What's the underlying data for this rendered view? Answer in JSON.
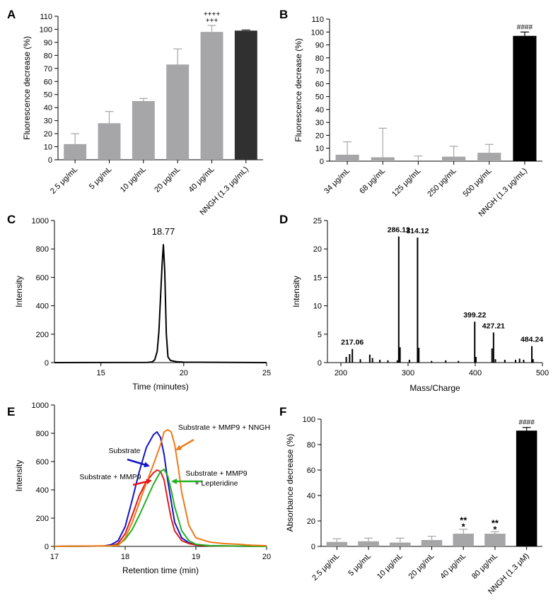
{
  "chart_data": [
    {
      "panel": "A",
      "type": "bar",
      "ylabel": "Fluorescence decrease (%)",
      "ylim": [
        0,
        110
      ],
      "yticks": [
        0,
        10,
        20,
        30,
        40,
        50,
        60,
        70,
        80,
        90,
        100,
        110
      ],
      "categories": [
        "2.5 μg/mL",
        "5 μg/mL",
        "10 μg/mL",
        "20 μg/mL",
        "40 μg/mL",
        "NNGH (1.3 μg/mL)"
      ],
      "values": [
        12,
        28,
        45,
        73,
        98,
        99
      ],
      "errors": [
        8,
        9,
        2,
        12,
        5,
        0.5
      ],
      "colors": [
        "#a6a6a8",
        "#a6a6a8",
        "#a6a6a8",
        "#a6a6a8",
        "#a6a6a8",
        "#303030"
      ],
      "annotations": [
        {
          "index": 4,
          "lines": [
            "++++",
            "+++"
          ]
        }
      ]
    },
    {
      "panel": "B",
      "type": "bar",
      "ylabel": "Fluorescence decrease (%)",
      "ylim": [
        0,
        110
      ],
      "yticks": [
        0,
        10,
        20,
        30,
        40,
        50,
        60,
        70,
        80,
        90,
        100,
        110
      ],
      "categories": [
        "34 μg/mL",
        "68 μg/mL",
        "125 μg/mL",
        "250 μg/mL",
        "500 μg/mL",
        "NNGH (1.3 μg/mL)"
      ],
      "values": [
        5,
        3,
        0,
        3.5,
        6.5,
        97
      ],
      "errors": [
        10,
        22.5,
        4,
        8,
        6.5,
        3
      ],
      "colors": [
        "#a6a6a8",
        "#a6a6a8",
        "#a6a6a8",
        "#a6a6a8",
        "#a6a6a8",
        "#000000"
      ],
      "annotations": [
        {
          "index": 5,
          "lines": [
            "####"
          ]
        }
      ]
    },
    {
      "panel": "C",
      "type": "line",
      "xlabel": "Time (minutes)",
      "ylabel": "Intensity",
      "xlim": [
        12.2,
        25
      ],
      "ylim": [
        0,
        1000
      ],
      "xticks": [
        15,
        20,
        25
      ],
      "yticks": [
        0,
        200,
        400,
        600,
        800,
        1000
      ],
      "annotations": [
        {
          "text": "18.77",
          "x": 18.77,
          "y": 900
        }
      ],
      "series": [
        {
          "name": "chromatogram",
          "color": "#000000",
          "x": [
            12.2,
            17.8,
            18.1,
            18.25,
            18.4,
            18.5,
            18.6,
            18.7,
            18.77,
            18.85,
            18.95,
            19.05,
            19.2,
            19.4,
            19.6,
            20.0,
            25.0
          ],
          "y": [
            0,
            1,
            5,
            20,
            80,
            220,
            460,
            700,
            830,
            650,
            200,
            40,
            15,
            10,
            6,
            3,
            0
          ]
        }
      ]
    },
    {
      "panel": "D",
      "type": "bar",
      "subtype": "mass-spectrum",
      "xlabel": "Mass/Charge",
      "ylabel": "Intensity",
      "xlim": [
        180,
        500
      ],
      "ylim": [
        0,
        25
      ],
      "xticks": [
        200,
        300,
        400,
        500
      ],
      "yticks": [
        0,
        5,
        10,
        15,
        20,
        25
      ],
      "peaks": [
        {
          "mz": 208,
          "intensity": 1.0
        },
        {
          "mz": 213,
          "intensity": 1.5
        },
        {
          "mz": 217.06,
          "intensity": 2.4
        },
        {
          "mz": 229,
          "intensity": 0.6
        },
        {
          "mz": 243,
          "intensity": 1.4
        },
        {
          "mz": 247,
          "intensity": 0.8
        },
        {
          "mz": 258,
          "intensity": 0.5
        },
        {
          "mz": 270,
          "intensity": 0.4
        },
        {
          "mz": 284,
          "intensity": 0.4
        },
        {
          "mz": 286.12,
          "intensity": 22.2
        },
        {
          "mz": 288,
          "intensity": 2.7
        },
        {
          "mz": 302,
          "intensity": 0.5
        },
        {
          "mz": 314.12,
          "intensity": 22.0
        },
        {
          "mz": 316,
          "intensity": 2.6
        },
        {
          "mz": 335,
          "intensity": 0.3
        },
        {
          "mz": 356,
          "intensity": 0.4
        },
        {
          "mz": 375,
          "intensity": 0.3
        },
        {
          "mz": 399.22,
          "intensity": 7.2
        },
        {
          "mz": 401,
          "intensity": 1.0
        },
        {
          "mz": 425,
          "intensity": 2.5
        },
        {
          "mz": 427.21,
          "intensity": 5.3
        },
        {
          "mz": 430,
          "intensity": 0.6
        },
        {
          "mz": 444,
          "intensity": 0.5
        },
        {
          "mz": 460,
          "intensity": 0.5
        },
        {
          "mz": 466,
          "intensity": 0.7
        },
        {
          "mz": 472,
          "intensity": 0.5
        },
        {
          "mz": 484.24,
          "intensity": 2.9
        },
        {
          "mz": 486,
          "intensity": 0.6
        }
      ],
      "peak_labels": [
        {
          "text": "217.06",
          "mz": 217.06,
          "intensity": 2.4
        },
        {
          "text": "286.12",
          "mz": 286.12,
          "intensity": 22.2
        },
        {
          "text": "314.12",
          "mz": 314.12,
          "intensity": 22.0
        },
        {
          "text": "399.22",
          "mz": 399.22,
          "intensity": 7.2
        },
        {
          "text": "427.21",
          "mz": 427.21,
          "intensity": 5.3
        },
        {
          "text": "484.24",
          "mz": 484.24,
          "intensity": 2.9
        }
      ]
    },
    {
      "panel": "E",
      "type": "line",
      "xlabel": "Retention time (min)",
      "ylabel": "Intensity",
      "xlim": [
        17,
        20
      ],
      "ylim": [
        0,
        1000
      ],
      "xticks": [
        17,
        18,
        19,
        20
      ],
      "yticks": [
        0,
        200,
        400,
        600,
        800,
        1000
      ],
      "series": [
        {
          "name": "Substrate",
          "color": "#1414c8",
          "x": [
            17,
            17.7,
            17.8,
            17.9,
            18.0,
            18.1,
            18.2,
            18.3,
            18.4,
            18.45,
            18.5,
            18.55,
            18.6,
            18.7,
            18.8,
            18.9,
            19.0,
            19.2,
            19.6,
            20.0
          ],
          "y": [
            0,
            3,
            12,
            40,
            140,
            330,
            530,
            700,
            790,
            810,
            770,
            650,
            470,
            170,
            60,
            25,
            10,
            5,
            2,
            0
          ]
        },
        {
          "name": "Substrate + MMP9",
          "color": "#e01a1a",
          "x": [
            17,
            17.8,
            17.9,
            18.0,
            18.1,
            18.2,
            18.3,
            18.4,
            18.45,
            18.5,
            18.55,
            18.6,
            18.65,
            18.7,
            18.8,
            18.9,
            19.0,
            19.2,
            20.0
          ],
          "y": [
            0,
            4,
            20,
            90,
            220,
            360,
            460,
            520,
            540,
            530,
            470,
            330,
            200,
            110,
            40,
            20,
            10,
            4,
            0
          ]
        },
        {
          "name": "Substrate + MMP9 + Lepteridine",
          "color": "#22b122",
          "x": [
            17,
            17.8,
            17.9,
            18.0,
            18.1,
            18.2,
            18.3,
            18.4,
            18.5,
            18.55,
            18.6,
            18.65,
            18.7,
            18.8,
            18.9,
            19.0,
            19.2,
            20.0
          ],
          "y": [
            0,
            3,
            10,
            50,
            120,
            220,
            330,
            440,
            530,
            545,
            500,
            400,
            280,
            110,
            40,
            15,
            5,
            0
          ]
        },
        {
          "name": "Substrate + MMP9 + NNGH",
          "color": "#ef7a1a",
          "x": [
            17,
            17.9,
            18.0,
            18.1,
            18.2,
            18.3,
            18.4,
            18.5,
            18.55,
            18.6,
            18.65,
            18.7,
            18.75,
            18.8,
            18.9,
            19.0,
            19.2,
            19.4,
            19.6,
            19.8,
            20.0
          ],
          "y": [
            0,
            5,
            60,
            170,
            310,
            450,
            580,
            720,
            810,
            825,
            810,
            720,
            560,
            380,
            150,
            60,
            30,
            20,
            15,
            8,
            5
          ]
        }
      ],
      "annotations": [
        {
          "lines": [
            "Substrate"
          ],
          "color": "#1414c8",
          "x": 18.2,
          "y": 750
        },
        {
          "lines": [
            "Substrate + MMP9 + NNGH"
          ],
          "color": "#ef7a1a",
          "x": 18.76,
          "y": 880
        },
        {
          "lines": [
            "Substrate + MMP9"
          ],
          "color": "#e01a1a",
          "x": 18.32,
          "y": 510
        },
        {
          "lines": [
            "Substrate + MMP9",
            "+ Lepteridine"
          ],
          "color": "#22b122",
          "x": 18.82,
          "y": 510
        }
      ]
    },
    {
      "panel": "F",
      "type": "bar",
      "ylabel": "Absorbance decrease (%)",
      "ylim": [
        0,
        100
      ],
      "yticks": [
        0,
        20,
        40,
        60,
        80,
        100
      ],
      "categories": [
        "2.5 μg/mL",
        "5 μg/mL",
        "10 μg/mL",
        "20 μg/mL",
        "40 μg/mL",
        "80 μg/mL",
        "NNGH (1.3 μM)"
      ],
      "values": [
        3.5,
        4,
        3,
        5,
        10,
        10,
        91
      ],
      "errors": [
        2.5,
        2.5,
        3.5,
        3,
        3.5,
        1.5,
        2.5
      ],
      "colors": [
        "#a6a6a8",
        "#a6a6a8",
        "#a6a6a8",
        "#a6a6a8",
        "#a6a6a8",
        "#a6a6a8",
        "#000000"
      ],
      "annotations": [
        {
          "index": 4,
          "lines": [
            "**",
            "*"
          ]
        },
        {
          "index": 5,
          "lines": [
            "**",
            "*"
          ]
        },
        {
          "index": 6,
          "lines": [
            "####"
          ]
        }
      ]
    }
  ]
}
